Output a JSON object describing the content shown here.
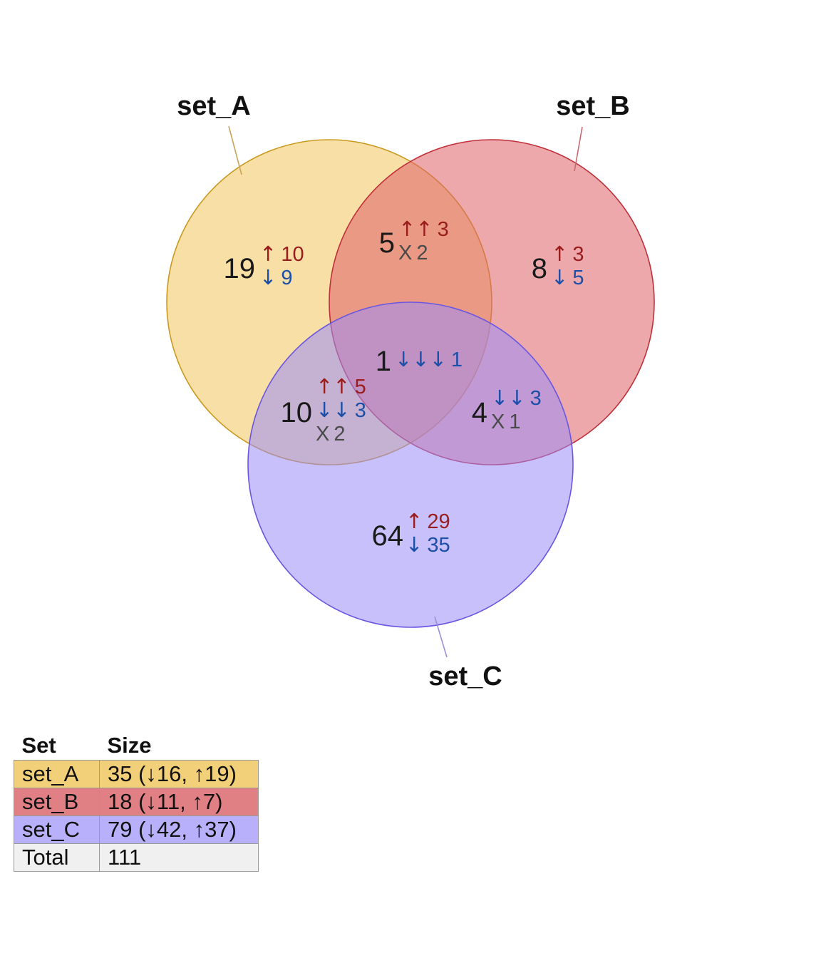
{
  "sets": [
    {
      "id": "A",
      "name": "set_A",
      "color": "#f2c45c",
      "edge": "#c99a22",
      "leader": "#c9a45a"
    },
    {
      "id": "B",
      "name": "set_B",
      "color": "#de6068",
      "edge": "#c0303a",
      "leader": "#c96a72"
    },
    {
      "id": "C",
      "name": "set_C",
      "color": "#9a8cf8",
      "edge": "#6a56e0",
      "leader": "#9a90d8"
    }
  ],
  "regions": {
    "A": {
      "count": "19",
      "lines": [
        {
          "arrows": "↑",
          "value": "10",
          "kind": "up"
        },
        {
          "arrows": "↓",
          "value": "9",
          "kind": "down"
        }
      ]
    },
    "B": {
      "count": "8",
      "lines": [
        {
          "arrows": "↑",
          "value": "3",
          "kind": "up"
        },
        {
          "arrows": "↓",
          "value": "5",
          "kind": "down"
        }
      ]
    },
    "C": {
      "count": "64",
      "lines": [
        {
          "arrows": "↑",
          "value": "29",
          "kind": "up"
        },
        {
          "arrows": "↓",
          "value": "35",
          "kind": "down"
        }
      ]
    },
    "AB": {
      "count": "5",
      "lines": [
        {
          "arrows": "↑↑",
          "value": "3",
          "kind": "up"
        },
        {
          "arrows": "X",
          "value": "2",
          "kind": "mixed"
        }
      ]
    },
    "AC": {
      "count": "10",
      "lines": [
        {
          "arrows": "↑↑",
          "value": "5",
          "kind": "up"
        },
        {
          "arrows": "↓↓",
          "value": "3",
          "kind": "down"
        },
        {
          "arrows": "X",
          "value": "2",
          "kind": "mixed"
        }
      ]
    },
    "BC": {
      "count": "4",
      "lines": [
        {
          "arrows": "↓↓",
          "value": "3",
          "kind": "down"
        },
        {
          "arrows": "X",
          "value": "1",
          "kind": "mixed"
        }
      ]
    },
    "ABC": {
      "count": "1",
      "lines": [
        {
          "arrows": "↓↓↓",
          "value": "1",
          "kind": "down"
        }
      ]
    }
  },
  "table": {
    "headers": {
      "set": "Set",
      "size": "Size"
    },
    "rows": [
      {
        "set": "set_A",
        "size": "35 (↓16, ↑19)",
        "color": "#f2d07a"
      },
      {
        "set": "set_B",
        "size": "18 (↓11, ↑7)",
        "color": "#e08084"
      },
      {
        "set": "set_C",
        "size": "79 (↓42, ↑37)",
        "color": "#b9b0fb"
      },
      {
        "set": "Total",
        "size": "111",
        "color": "#f0f0f0"
      }
    ]
  }
}
